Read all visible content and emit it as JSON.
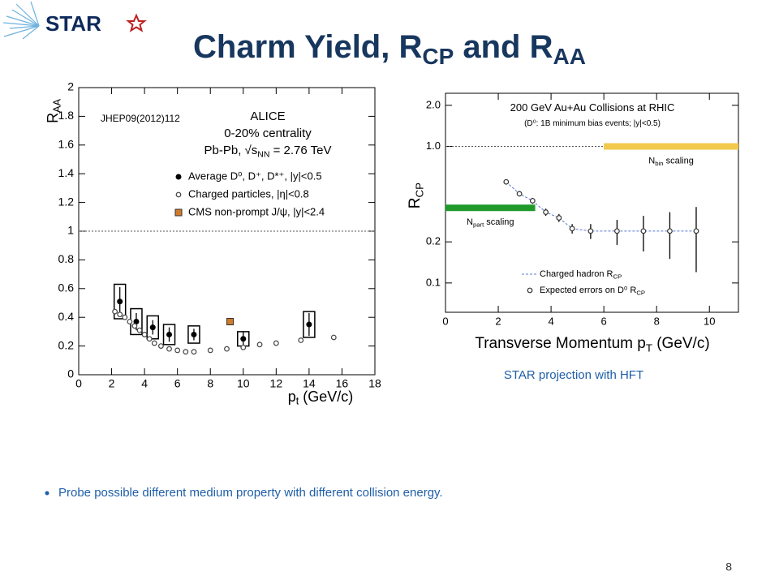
{
  "header": {
    "logo": "STAR",
    "title": [
      {
        "t": "Charm Yield, R"
      },
      {
        "sub": "CP"
      },
      {
        "t": " and R"
      },
      {
        "sub": "AA"
      }
    ]
  },
  "citation": "JHEP09(2012)112",
  "caption": "STAR projection with HFT",
  "bullets": [
    "Probe possible different medium property with different collision energy."
  ],
  "page_number": "8",
  "chart_data": [
    {
      "type": "scatter",
      "xlabel": [
        {
          "t": "p"
        },
        {
          "sub": "t"
        },
        {
          "t": " (GeV/c)"
        }
      ],
      "ylabel": [
        {
          "t": "R"
        },
        {
          "sub": "AA"
        }
      ],
      "annotations": [
        [
          {
            "t": "ALICE"
          }
        ],
        [
          {
            "t": "0-20% centrality"
          }
        ],
        [
          {
            "t": "Pb-Pb, √s"
          },
          {
            "sub": "NN"
          },
          {
            "t": " = 2.76 TeV"
          }
        ]
      ],
      "xlim": [
        0,
        18
      ],
      "xticks": [
        0,
        2,
        4,
        6,
        8,
        10,
        12,
        14,
        16,
        18
      ],
      "ylim": [
        0,
        2
      ],
      "yticks": [
        0,
        0.2,
        0.4,
        0.6,
        0.8,
        1,
        1.2,
        1.4,
        1.6,
        1.8,
        2
      ],
      "reference_line": 1,
      "series": [
        {
          "name": "Average D⁰, D⁺, D*⁺, |y|<0.5",
          "color": "#000000",
          "marker": "filled",
          "x": [
            2.5,
            3.5,
            4.5,
            5.5,
            7,
            10,
            14
          ],
          "values": [
            0.51,
            0.37,
            0.33,
            0.28,
            0.28,
            0.25,
            0.35
          ],
          "errors": [
            0.1,
            0.06,
            0.05,
            0.05,
            0.04,
            0.05,
            0.08
          ],
          "sys": [
            0.12,
            0.09,
            0.08,
            0.07,
            0.06,
            0.05,
            0.09
          ]
        },
        {
          "name": "Charged particles, |η|<0.8",
          "color": "#444444",
          "marker": "open",
          "x": [
            2.2,
            2.5,
            2.8,
            3.1,
            3.4,
            3.7,
            4.0,
            4.3,
            4.6,
            5.0,
            5.5,
            6.0,
            6.5,
            7.0,
            8.0,
            9.0,
            10.0,
            11.0,
            12.0,
            13.5,
            15.5
          ],
          "values": [
            0.44,
            0.42,
            0.4,
            0.37,
            0.34,
            0.31,
            0.28,
            0.25,
            0.22,
            0.2,
            0.18,
            0.17,
            0.16,
            0.16,
            0.17,
            0.18,
            0.19,
            0.21,
            0.22,
            0.24,
            0.26
          ]
        },
        {
          "name": "CMS non-prompt J/ψ, |y|<2.4",
          "color": "#d07a2a",
          "marker": "square",
          "x": [
            9.2
          ],
          "values": [
            0.37
          ]
        }
      ]
    },
    {
      "type": "scatter",
      "log_y": true,
      "xlabel": [
        {
          "t": "Transverse Momentum p"
        },
        {
          "sub": "T"
        },
        {
          "t": " (GeV/c)"
        }
      ],
      "ylabel": [
        {
          "t": "R"
        },
        {
          "sub": "CP"
        }
      ],
      "annotations": [
        [
          {
            "t": "200 GeV Au+Au Collisions at RHIC"
          }
        ],
        [
          {
            "t": "(D⁰: 1B minimum bias events; |y|<0.5)"
          }
        ]
      ],
      "xlim": [
        0,
        11.1
      ],
      "xticks": [
        0,
        2,
        4,
        6,
        8,
        10
      ],
      "ylim": [
        0.061,
        2.45
      ],
      "yticks": [
        0.1,
        0.2,
        {
          "value": 1,
          "label": "1.0"
        },
        {
          "value": 2,
          "label": "2.0"
        }
      ],
      "reference_line": 1,
      "bands": [
        {
          "label": [
            {
              "t": "N"
            },
            {
              "sub": "part"
            },
            {
              "t": " scaling"
            }
          ],
          "color": "#1f9a2a",
          "x": [
            0,
            3.4
          ],
          "value": 0.355
        },
        {
          "label": [
            {
              "t": "N"
            },
            {
              "sub": "bin"
            },
            {
              "t": " scaling"
            }
          ],
          "color": "#f2c94c",
          "x": [
            6,
            11.1
          ],
          "value": 1
        }
      ],
      "series": [
        {
          "name": [
            {
              "t": "Charged hadron R"
            },
            {
              "sub": "CP"
            }
          ],
          "color": "#5a78d6",
          "marker": "dashed-line",
          "x": [
            2.3,
            2.8,
            3.3,
            3.8,
            4.3,
            4.8,
            5.5,
            6.5,
            7.5,
            8.5,
            9.5
          ],
          "values": [
            0.55,
            0.45,
            0.4,
            0.33,
            0.3,
            0.25,
            0.24,
            0.24,
            0.24,
            0.24,
            0.24
          ]
        },
        {
          "name": [
            {
              "t": "Expected errors on D⁰ R"
            },
            {
              "sub": "CP"
            }
          ],
          "color": "#333333",
          "marker": "open",
          "x": [
            2.3,
            2.8,
            3.3,
            3.8,
            4.3,
            4.8,
            5.5,
            6.5,
            7.5,
            8.5,
            9.5
          ],
          "values": [
            0.55,
            0.45,
            0.4,
            0.33,
            0.3,
            0.25,
            0.24,
            0.24,
            0.24,
            0.24,
            0.24
          ],
          "errors": [
            0.02,
            0.02,
            0.02,
            0.02,
            0.02,
            0.02,
            0.03,
            0.05,
            0.07,
            0.09,
            0.12
          ]
        }
      ]
    }
  ]
}
